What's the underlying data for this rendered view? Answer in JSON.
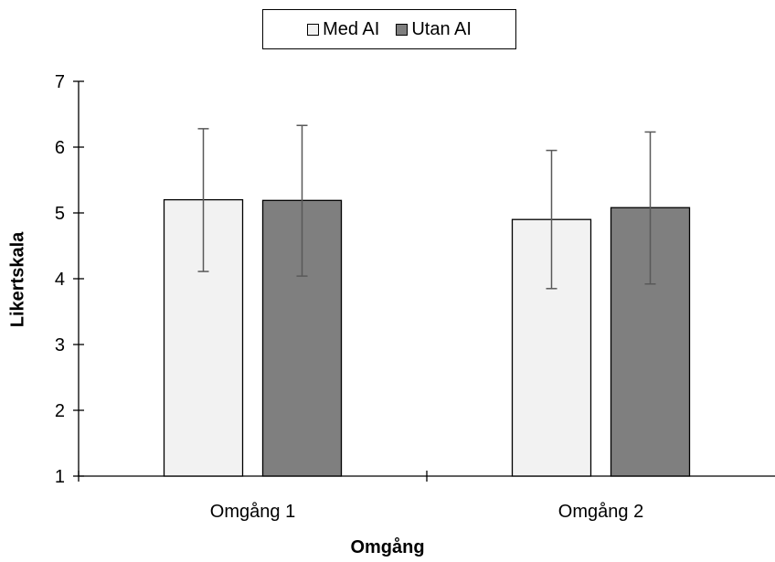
{
  "chart_data": {
    "type": "bar",
    "title": "",
    "categories": [
      "Omgång 1",
      "Omgång 2"
    ],
    "series": [
      {
        "name": "Med AI",
        "values": [
          5.2,
          4.9
        ],
        "error_low": [
          4.11,
          3.85
        ],
        "error_high": [
          6.28,
          5.95
        ],
        "color": "#f2f2f2"
      },
      {
        "name": "Utan AI",
        "values": [
          5.19,
          5.08
        ],
        "error_low": [
          4.04,
          3.92
        ],
        "error_high": [
          6.33,
          6.23
        ],
        "color": "#7f7f7f"
      }
    ],
    "xlabel": "Omgång",
    "ylabel": "Likertskala",
    "ylim": [
      1,
      7
    ],
    "yticks": [
      "1",
      "2",
      "3",
      "4",
      "5",
      "6",
      "7"
    ],
    "grid": false,
    "legend_position": "top-center"
  }
}
